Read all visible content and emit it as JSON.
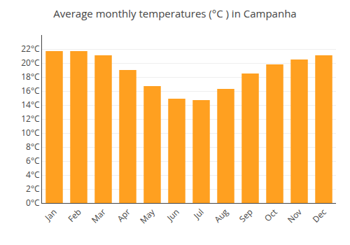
{
  "chart_data": {
    "type": "bar",
    "title": "Average monthly temperatures (°C ) in Campanha",
    "categories": [
      "Jan",
      "Feb",
      "Mar",
      "Apr",
      "May",
      "Jun",
      "Jul",
      "Aug",
      "Sep",
      "Oct",
      "Nov",
      "Dec"
    ],
    "values": [
      21.7,
      21.7,
      21.1,
      19.0,
      16.7,
      14.9,
      14.7,
      16.3,
      18.5,
      19.8,
      20.5,
      21.1
    ],
    "color": "#FFA020",
    "ylim": [
      0,
      24
    ],
    "yticks": [
      {
        "value": 0,
        "label": "0°C"
      },
      {
        "value": 2,
        "label": "2°C"
      },
      {
        "value": 4,
        "label": "4°C"
      },
      {
        "value": 6,
        "label": "6°C"
      },
      {
        "value": 8,
        "label": "8°C"
      },
      {
        "value": 10,
        "label": "10°C"
      },
      {
        "value": 12,
        "label": "12°C"
      },
      {
        "value": 14,
        "label": "14°C"
      },
      {
        "value": 16,
        "label": "16°C"
      },
      {
        "value": 18,
        "label": "18°C"
      },
      {
        "value": 20,
        "label": "20°C"
      },
      {
        "value": 22,
        "label": "22°C"
      }
    ],
    "grid": true
  }
}
